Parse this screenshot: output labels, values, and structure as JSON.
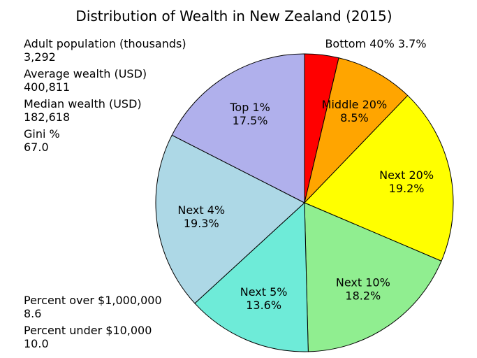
{
  "chart_data": {
    "type": "pie",
    "title": "Distribution of Wealth in New Zealand (2015)",
    "categories": [
      "Bottom 40%",
      "Middle 20%",
      "Next 20%",
      "Next 10%",
      "Next 5%",
      "Next 4%",
      "Top 1%"
    ],
    "values": [
      3.7,
      8.5,
      19.2,
      18.2,
      13.6,
      19.3,
      17.5
    ],
    "value_labels": [
      "3.7%",
      "8.5%",
      "19.2%",
      "18.2%",
      "13.6%",
      "19.3%",
      "17.5%"
    ],
    "colors": [
      "#ff0000",
      "#ffa500",
      "#ffff00",
      "#90ee90",
      "#6eebd8",
      "#add8e6",
      "#b0b0ec"
    ],
    "stats": [
      {
        "label": "Adult population (thousands)",
        "value": "3,292"
      },
      {
        "label": "Average wealth (USD)",
        "value": "400,811"
      },
      {
        "label": "Median wealth (USD)",
        "value": "182,618"
      },
      {
        "label": "Gini %",
        "value": "67.0"
      }
    ],
    "stats_bottom": [
      {
        "label": "Percent over $1,000,000",
        "value": "8.6"
      },
      {
        "label": "Percent under $10,000",
        "value": "10.0"
      }
    ]
  }
}
